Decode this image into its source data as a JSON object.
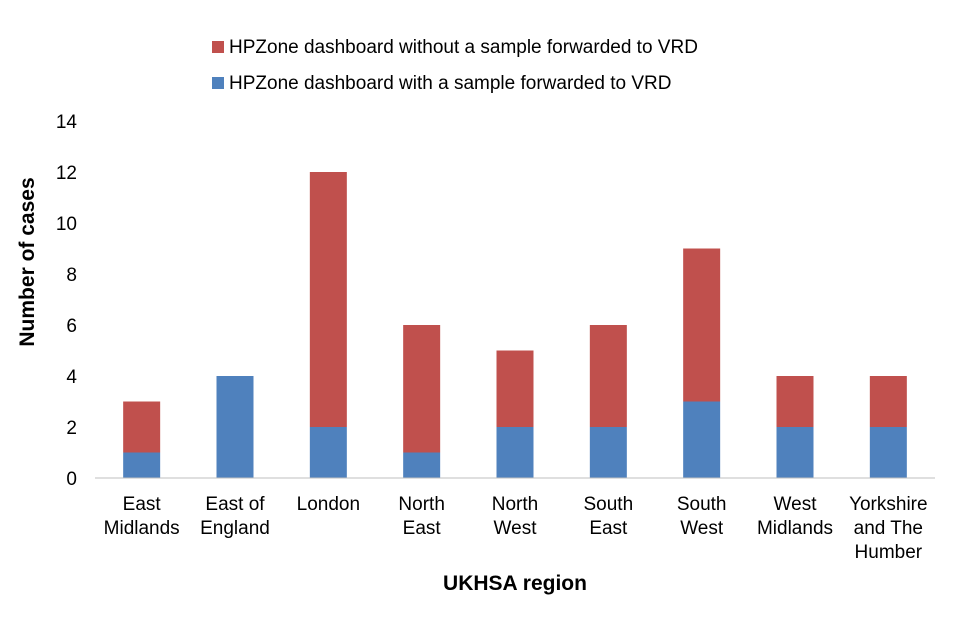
{
  "chart_data": {
    "type": "bar",
    "stacked": true,
    "categories": [
      [
        "East",
        "Midlands"
      ],
      [
        "East of",
        "England"
      ],
      [
        "London"
      ],
      [
        "North",
        "East"
      ],
      [
        "North",
        "West"
      ],
      [
        "South",
        "East"
      ],
      [
        "South",
        "West"
      ],
      [
        "West",
        "Midlands"
      ],
      [
        "Yorkshire",
        "and The",
        "Humber"
      ]
    ],
    "series": [
      {
        "name": "HPZone dashboard with a sample forwarded to VRD",
        "color": "#4F81BD",
        "values": [
          1,
          4,
          2,
          1,
          2,
          2,
          3,
          2,
          2
        ]
      },
      {
        "name": "HPZone dashboard without a sample forwarded to VRD",
        "color": "#C0504D",
        "values": [
          2,
          0,
          10,
          5,
          3,
          4,
          6,
          2,
          2
        ]
      }
    ],
    "legend_order": [
      1,
      0
    ],
    "legend_position": "top",
    "xlabel": "UKHSA region",
    "ylabel": "Number of cases",
    "ylim": [
      0,
      14
    ],
    "yticks": [
      "0",
      "2",
      "4",
      "6",
      "8",
      "10",
      "12",
      "14"
    ],
    "grid": false
  }
}
